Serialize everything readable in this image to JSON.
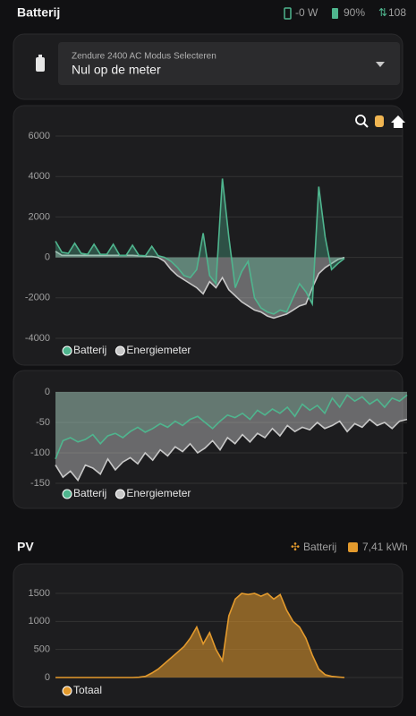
{
  "header": {
    "title": "Batterij",
    "power": "-0 W",
    "battery": "90%",
    "count": "108"
  },
  "select": {
    "label": "Zendure 2400 AC Modus Selecteren",
    "value": "Nul op de meter"
  },
  "pv_header": {
    "title": "PV",
    "source": "Batterij",
    "energy": "7,41 kWh"
  },
  "chart_data": [
    {
      "type": "line",
      "ylim": [
        -4000,
        6000
      ],
      "yticks": [
        -4000,
        -2000,
        0,
        2000,
        4000,
        6000
      ],
      "grid": true,
      "series": [
        {
          "name": "Energiemeter",
          "color": "#c8c8c8",
          "values": [
            300,
            100,
            100,
            100,
            100,
            100,
            100,
            100,
            100,
            100,
            100,
            100,
            100,
            80,
            50,
            50,
            0,
            -200,
            -600,
            -900,
            -1100,
            -1300,
            -1500,
            -1800,
            -1200,
            -1500,
            -1000,
            -1600,
            -1900,
            -2200,
            -2400,
            -2600,
            -2700,
            -2900,
            -3000,
            -2900,
            -2800,
            -2600,
            -2400,
            -2300,
            -1500,
            -800,
            -500,
            -300,
            -100,
            0
          ]
        },
        {
          "name": "Batterij",
          "color": "#4fb58e",
          "values": [
            800,
            250,
            200,
            700,
            200,
            150,
            650,
            150,
            150,
            650,
            100,
            100,
            600,
            100,
            80,
            550,
            80,
            0,
            -200,
            -500,
            -900,
            -1000,
            -600,
            1200,
            -900,
            -1300,
            3900,
            1000,
            -1500,
            -700,
            -200,
            -2000,
            -2500,
            -2700,
            -2800,
            -2600,
            -2700,
            -2000,
            -1300,
            -1700,
            -2300,
            3500,
            1000,
            -600,
            -300,
            -50
          ]
        }
      ]
    },
    {
      "type": "line",
      "ylim": [
        -150,
        0
      ],
      "yticks": [
        -150,
        -100,
        -50,
        0
      ],
      "grid": true,
      "series": [
        {
          "name": "Energiemeter",
          "color": "#c8c8c8",
          "values": [
            -120,
            -140,
            -130,
            -145,
            -120,
            -125,
            -135,
            -110,
            -128,
            -115,
            -108,
            -118,
            -100,
            -112,
            -95,
            -105,
            -90,
            -98,
            -85,
            -100,
            -92,
            -80,
            -95,
            -75,
            -85,
            -70,
            -82,
            -68,
            -75,
            -60,
            -72,
            -55,
            -65,
            -58,
            -62,
            -50,
            -60,
            -55,
            -48,
            -65,
            -52,
            -58,
            -45,
            -55,
            -50,
            -60,
            -48,
            -45
          ]
        },
        {
          "name": "Batterij",
          "color": "#4fb58e",
          "values": [
            -110,
            -80,
            -75,
            -82,
            -78,
            -70,
            -85,
            -72,
            -68,
            -75,
            -65,
            -58,
            -66,
            -60,
            -52,
            -58,
            -48,
            -55,
            -45,
            -40,
            -50,
            -60,
            -48,
            -38,
            -42,
            -35,
            -45,
            -30,
            -38,
            -28,
            -35,
            -25,
            -40,
            -20,
            -30,
            -22,
            -35,
            -10,
            -25,
            -5,
            -15,
            -8,
            -20,
            -12,
            -25,
            -10,
            -15,
            -5
          ]
        }
      ]
    },
    {
      "type": "line",
      "ylim": [
        0,
        1500
      ],
      "yticks": [
        0,
        500,
        1000,
        1500
      ],
      "grid": true,
      "series": [
        {
          "name": "Totaal",
          "color": "#e39a2d",
          "values": [
            0,
            0,
            0,
            0,
            0,
            0,
            0,
            0,
            0,
            0,
            0,
            0,
            0,
            5,
            20,
            80,
            150,
            250,
            350,
            450,
            550,
            700,
            900,
            600,
            800,
            500,
            300,
            1100,
            1400,
            1500,
            1480,
            1500,
            1450,
            1500,
            1400,
            1480,
            1200,
            1000,
            900,
            700,
            400,
            150,
            50,
            20,
            10,
            0
          ]
        }
      ]
    }
  ]
}
